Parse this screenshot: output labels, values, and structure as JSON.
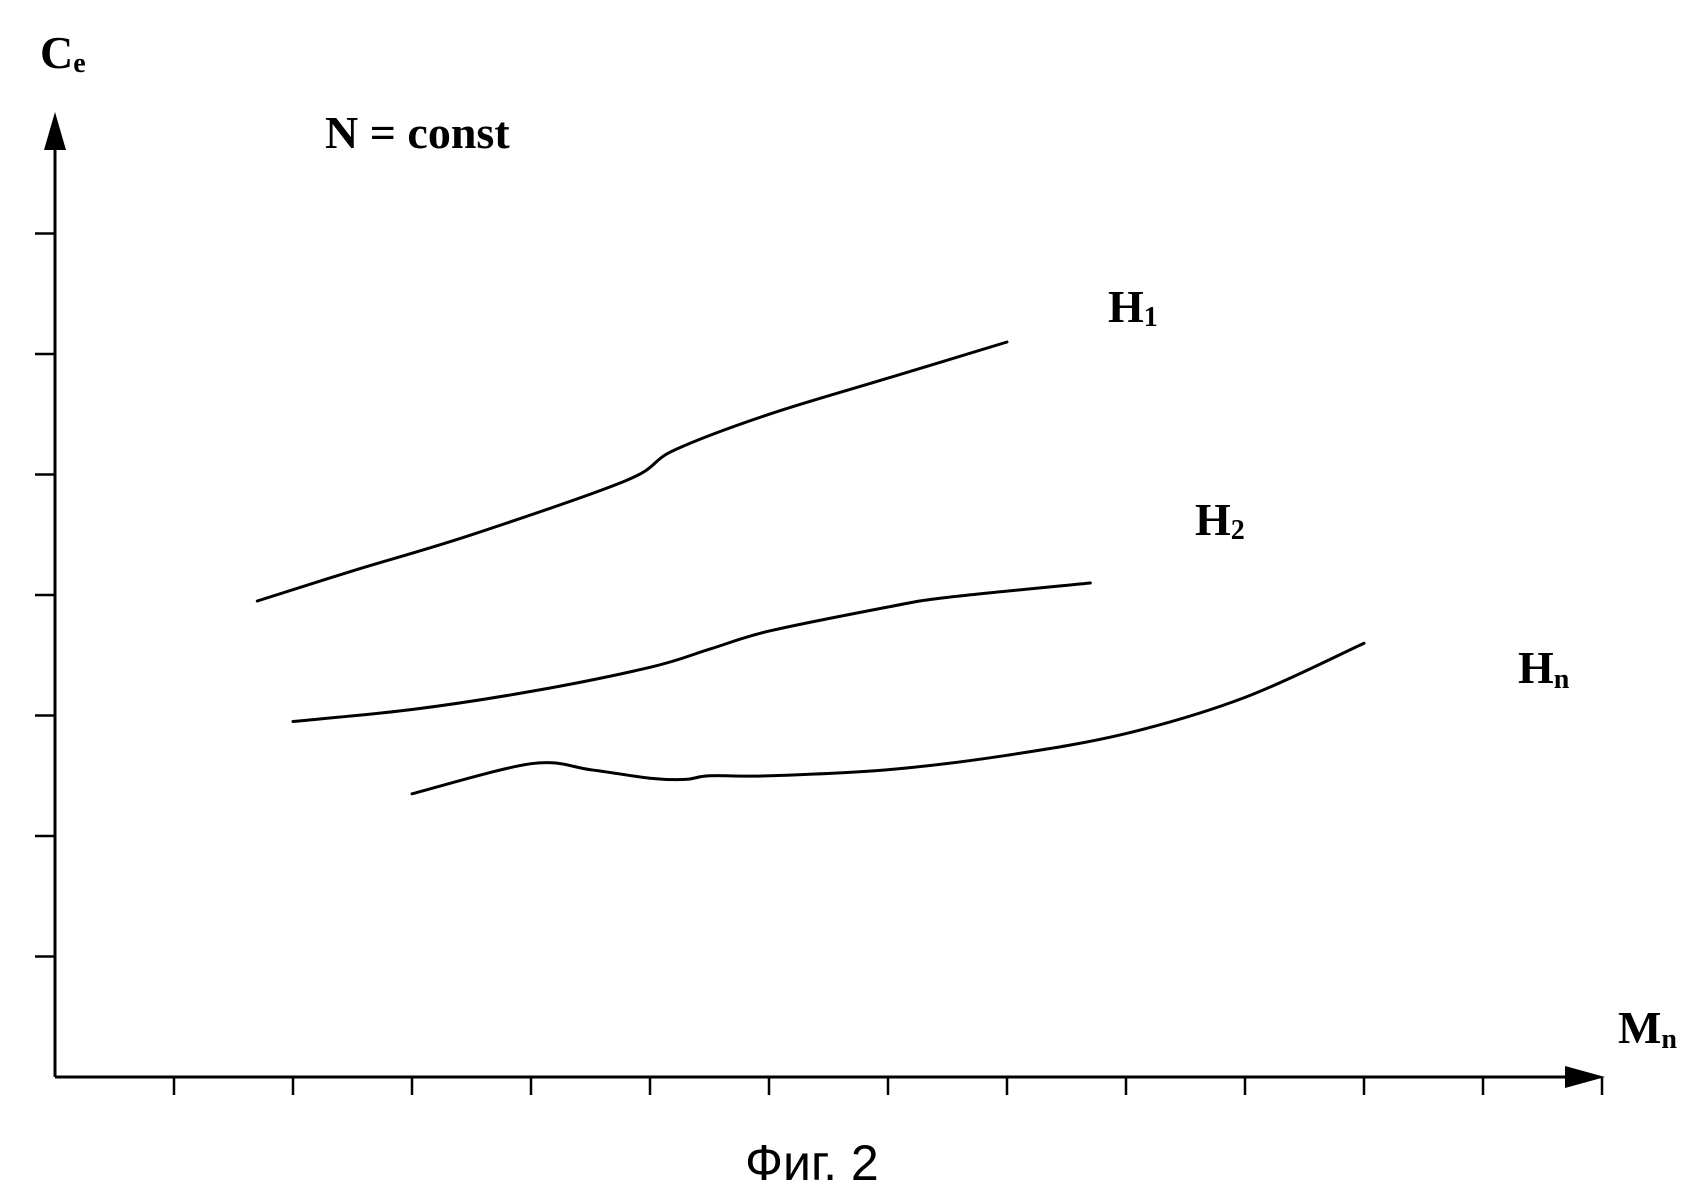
{
  "chart_data": {
    "type": "line",
    "ylabel": {
      "main": "C",
      "sub": "e"
    },
    "xlabel": {
      "main": "M",
      "sub": "n"
    },
    "annotation": "N = const",
    "caption": "Фиг. 2",
    "xlim": [
      0,
      13
    ],
    "ylim": [
      0,
      8
    ],
    "x_ticks": 13,
    "y_ticks": 7,
    "grid": false,
    "series": [
      {
        "name": "H",
        "sub": "1",
        "x": [
          1.7,
          2.5,
          3.5,
          4.8,
          5.2,
          6.0,
          7.0,
          8.0
        ],
        "y": [
          3.95,
          4.2,
          4.5,
          4.95,
          5.2,
          5.5,
          5.8,
          6.1
        ]
      },
      {
        "name": "H",
        "sub": "2",
        "x": [
          2.0,
          3.0,
          4.0,
          5.0,
          5.5,
          6.0,
          7.0,
          7.5,
          8.7
        ],
        "y": [
          2.95,
          3.05,
          3.2,
          3.4,
          3.55,
          3.7,
          3.9,
          3.98,
          4.1
        ]
      },
      {
        "name": "H",
        "sub": "n",
        "x": [
          3.0,
          4.0,
          4.5,
          5.0,
          5.3,
          5.5,
          6.0,
          7.0,
          8.0,
          9.0,
          10.0,
          11.0
        ],
        "y": [
          2.35,
          2.6,
          2.55,
          2.48,
          2.47,
          2.5,
          2.5,
          2.55,
          2.67,
          2.85,
          3.15,
          3.6
        ]
      }
    ]
  }
}
